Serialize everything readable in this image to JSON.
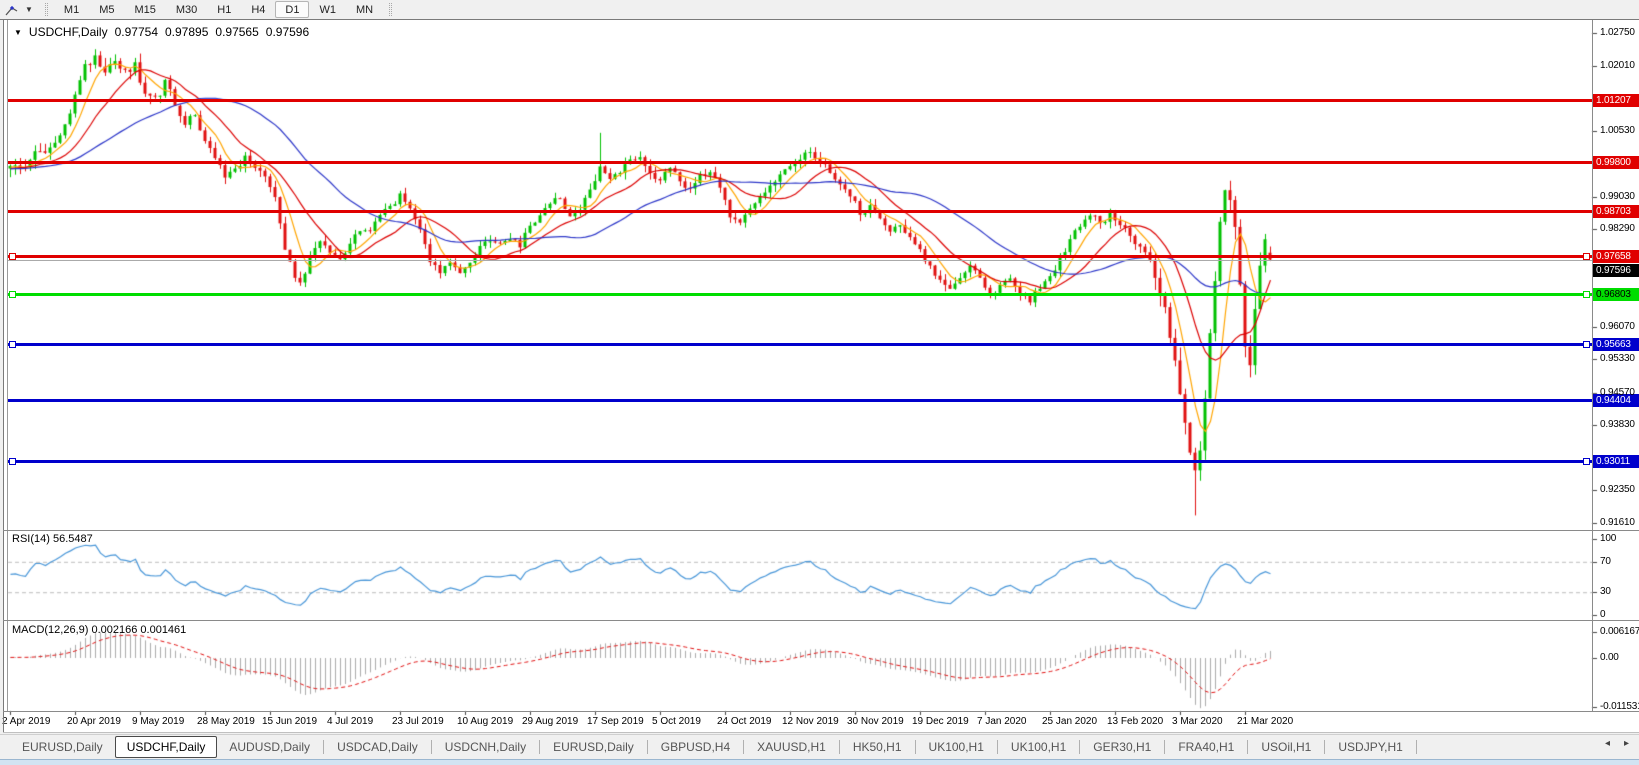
{
  "toolbar": {
    "timeframes": [
      "M1",
      "M5",
      "M15",
      "M30",
      "H1",
      "H4",
      "D1",
      "W1",
      "MN"
    ],
    "active_timeframe": "D1"
  },
  "title": {
    "symbol": "USDCHF,Daily",
    "open": "0.97754",
    "high": "0.97895",
    "low": "0.97565",
    "close": "0.97596"
  },
  "price_axis": {
    "plain_ticks": [
      "1.02750",
      "1.02010",
      "1.00530",
      "0.99030",
      "0.98290",
      "0.96070",
      "0.95330",
      "0.94570",
      "0.93830",
      "0.92350",
      "0.91610"
    ],
    "current_price": {
      "label": "0.97596",
      "value": 0.97596,
      "box_color": "#000000",
      "text_color": "#ffffff"
    }
  },
  "hlines": [
    {
      "label": "1.01207",
      "price": 1.01207,
      "color": "#e00000",
      "text_color": "#ffffff",
      "handles": false
    },
    {
      "label": "0.99800",
      "price": 0.998,
      "color": "#e00000",
      "text_color": "#ffffff",
      "handles": false
    },
    {
      "label": "0.98703",
      "price": 0.98703,
      "color": "#e00000",
      "text_color": "#ffffff",
      "handles": false
    },
    {
      "label": "0.97658",
      "price": 0.97658,
      "color": "#e00000",
      "text_color": "#ffffff",
      "handles": true
    },
    {
      "label": "0.96803",
      "price": 0.96803,
      "color": "#00dd00",
      "text_color": "#000000",
      "handles": true
    },
    {
      "label": "0.95663",
      "price": 0.95663,
      "color": "#0000cc",
      "text_color": "#ffffff",
      "handles": true
    },
    {
      "label": "0.94404",
      "price": 0.94404,
      "color": "#0000cc",
      "text_color": "#ffffff",
      "handles": false
    },
    {
      "label": "0.93011",
      "price": 0.93011,
      "color": "#0000cc",
      "text_color": "#ffffff",
      "handles": true
    }
  ],
  "rsi": {
    "label": "RSI(14) 56.5487",
    "value": 56.5487,
    "axis_ticks": [
      "100",
      "70",
      "30",
      "0"
    ],
    "dashed_levels": [
      70,
      30
    ]
  },
  "macd": {
    "label": "MACD(12,26,9) 0.002166 0.001461",
    "main_value": 0.002166,
    "signal_value": 0.001461,
    "axis_ticks": [
      "0.006167",
      "0.00",
      "-0.011531"
    ]
  },
  "date_axis": {
    "labels": [
      "2 Apr 2019",
      "20 Apr 2019",
      "9 May 2019",
      "28 May 2019",
      "15 Jun 2019",
      "4 Jul 2019",
      "23 Jul 2019",
      "10 Aug 2019",
      "29 Aug 2019",
      "17 Sep 2019",
      "5 Oct 2019",
      "24 Oct 2019",
      "12 Nov 2019",
      "30 Nov 2019",
      "19 Dec 2019",
      "7 Jan 2020",
      "25 Jan 2020",
      "13 Feb 2020",
      "3 Mar 2020",
      "21 Mar 2020"
    ]
  },
  "tabs": {
    "items": [
      "EURUSD,Daily",
      "USDCHF,Daily",
      "AUDUSD,Daily",
      "USDCAD,Daily",
      "USDCNH,Daily",
      "EURUSD,Daily",
      "GBPUSD,H4",
      "XAUUSD,H1",
      "HK50,H1",
      "UK100,H1",
      "UK100,H1",
      "GER30,H1",
      "FRA40,H1",
      "USOil,H1",
      "USDJPY,H1"
    ],
    "active_index": 1,
    "left_arrow": "◂",
    "right_arrow": "▸"
  },
  "colors": {
    "candle_up": "#00c000",
    "candle_down": "#e01010",
    "ma_fast": "#ffa500",
    "ma_mid": "#dc0000",
    "ma_slow": "#2b35c8",
    "rsi_line": "#4896d8",
    "rsi_dash": "#bcbcbc",
    "macd_hist": "#ababab",
    "macd_signal": "#e01010",
    "axis_tick": "#444444"
  },
  "chart_data": {
    "type": "candlestick",
    "symbol": "USDCHF",
    "timeframe": "Daily",
    "bar_count": 253,
    "price_range": [
      0.9161,
      1.0275
    ],
    "indicators": {
      "rsi_period": 14,
      "macd_params": [
        12,
        26,
        9
      ]
    },
    "moving_averages": [
      {
        "period": 6,
        "color_key": "ma_fast"
      },
      {
        "period": 14,
        "color_key": "ma_mid"
      },
      {
        "period": 34,
        "color_key": "ma_slow"
      }
    ],
    "close_anchors": [
      [
        0,
        0.9965
      ],
      [
        3,
        0.9985
      ],
      [
        6,
        1.0
      ],
      [
        9,
        1.0015
      ],
      [
        11,
        1.006
      ],
      [
        13,
        1.013
      ],
      [
        15,
        1.0195
      ],
      [
        17,
        1.022
      ],
      [
        19,
        1.0195
      ],
      [
        21,
        1.0215
      ],
      [
        23,
        1.0185
      ],
      [
        25,
        1.0205
      ],
      [
        27,
        1.014
      ],
      [
        29,
        1.0125
      ],
      [
        31,
        1.016
      ],
      [
        33,
        1.011
      ],
      [
        35,
        1.006
      ],
      [
        37,
        1.009
      ],
      [
        39,
        1.0035
      ],
      [
        41,
        0.999
      ],
      [
        43,
        0.9945
      ],
      [
        45,
        0.9975
      ],
      [
        47,
        0.9995
      ],
      [
        49,
        0.9965
      ],
      [
        51,
        0.994
      ],
      [
        53,
        0.989
      ],
      [
        55,
        0.979
      ],
      [
        57,
        0.9715
      ],
      [
        58,
        0.97
      ],
      [
        60,
        0.976
      ],
      [
        62,
        0.981
      ],
      [
        64,
        0.978
      ],
      [
        66,
        0.9765
      ],
      [
        68,
        0.98
      ],
      [
        70,
        0.983
      ],
      [
        72,
        0.9825
      ],
      [
        74,
        0.9855
      ],
      [
        76,
        0.9885
      ],
      [
        78,
        0.9905
      ],
      [
        80,
        0.9875
      ],
      [
        82,
        0.982
      ],
      [
        84,
        0.9755
      ],
      [
        86,
        0.973
      ],
      [
        88,
        0.9745
      ],
      [
        90,
        0.9715
      ],
      [
        92,
        0.9755
      ],
      [
        94,
        0.9785
      ],
      [
        96,
        0.9805
      ],
      [
        98,
        0.979
      ],
      [
        100,
        0.9815
      ],
      [
        102,
        0.9795
      ],
      [
        104,
        0.9835
      ],
      [
        106,
        0.9855
      ],
      [
        108,
        0.9875
      ],
      [
        110,
        0.9895
      ],
      [
        112,
        0.9865
      ],
      [
        114,
        0.9885
      ],
      [
        116,
        0.992
      ],
      [
        118,
        0.997
      ],
      [
        120,
        0.9945
      ],
      [
        122,
        0.9965
      ],
      [
        124,
        0.9985
      ],
      [
        126,
        0.9998
      ],
      [
        128,
        0.997
      ],
      [
        130,
        0.9945
      ],
      [
        132,
        0.9965
      ],
      [
        134,
        0.9935
      ],
      [
        136,
        0.9915
      ],
      [
        138,
        0.9945
      ],
      [
        140,
        0.996
      ],
      [
        142,
        0.993
      ],
      [
        144,
        0.9865
      ],
      [
        146,
        0.984
      ],
      [
        148,
        0.988
      ],
      [
        150,
        0.9905
      ],
      [
        152,
        0.9925
      ],
      [
        154,
        0.9945
      ],
      [
        156,
        0.9965
      ],
      [
        158,
        0.9985
      ],
      [
        160,
        1.0005
      ],
      [
        162,
        0.9985
      ],
      [
        164,
        0.9955
      ],
      [
        166,
        0.9925
      ],
      [
        168,
        0.9895
      ],
      [
        170,
        0.9865
      ],
      [
        172,
        0.9885
      ],
      [
        174,
        0.9845
      ],
      [
        176,
        0.9825
      ],
      [
        178,
        0.9845
      ],
      [
        180,
        0.9815
      ],
      [
        182,
        0.9785
      ],
      [
        184,
        0.9745
      ],
      [
        186,
        0.9715
      ],
      [
        188,
        0.969
      ],
      [
        190,
        0.9725
      ],
      [
        192,
        0.9745
      ],
      [
        194,
        0.9715
      ],
      [
        196,
        0.968
      ],
      [
        198,
        0.9705
      ],
      [
        200,
        0.9725
      ],
      [
        202,
        0.969
      ],
      [
        204,
        0.9672
      ],
      [
        206,
        0.97
      ],
      [
        208,
        0.9725
      ],
      [
        210,
        0.9765
      ],
      [
        212,
        0.9805
      ],
      [
        214,
        0.9835
      ],
      [
        216,
        0.9855
      ],
      [
        218,
        0.984
      ],
      [
        220,
        0.9862
      ],
      [
        222,
        0.9845
      ],
      [
        224,
        0.9818
      ],
      [
        226,
        0.9785
      ],
      [
        228,
        0.9748
      ],
      [
        230,
        0.97
      ],
      [
        231,
        0.9655
      ],
      [
        232,
        0.959
      ],
      [
        233,
        0.952
      ],
      [
        234,
        0.945
      ],
      [
        235,
        0.939
      ],
      [
        236,
        0.933
      ],
      [
        237,
        0.9268
      ],
      [
        238,
        0.933
      ],
      [
        239,
        0.946
      ],
      [
        240,
        0.959
      ],
      [
        241,
        0.9705
      ],
      [
        242,
        0.9825
      ],
      [
        243,
        0.9898
      ],
      [
        244,
        0.987
      ],
      [
        245,
        0.9815
      ],
      [
        246,
        0.97
      ],
      [
        247,
        0.9565
      ],
      [
        248,
        0.951
      ],
      [
        249,
        0.9645
      ],
      [
        250,
        0.973
      ],
      [
        251,
        0.979
      ],
      [
        252,
        0.976
      ]
    ],
    "special_bars": {
      "crash_low": {
        "bar": 237,
        "low": 0.9178
      },
      "spike_high": {
        "bar": 118,
        "high": 1.0048
      }
    },
    "last_bar": {
      "open": 0.97754,
      "high": 0.97895,
      "low": 0.97565,
      "close": 0.97596
    }
  }
}
